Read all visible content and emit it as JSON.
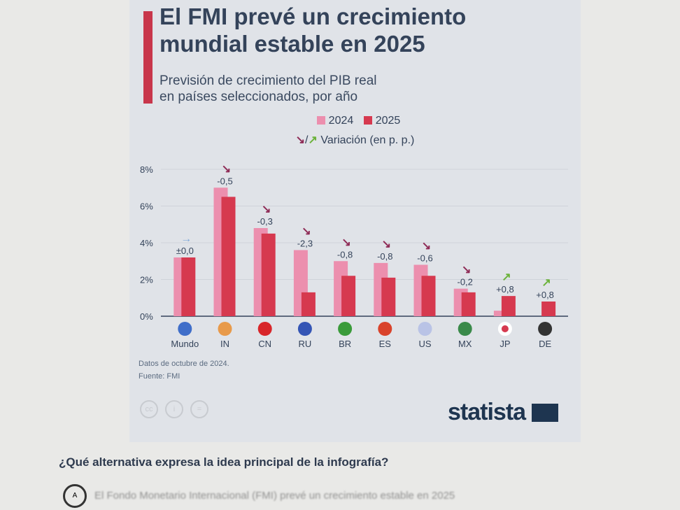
{
  "infographic": {
    "title": "El FMI prevé un crecimiento mundial estable en 2025",
    "subtitle_line1": "Previsión de crecimiento del PIB real",
    "subtitle_line2": "en países seleccionados, por año",
    "legend_variation": "Variación (en p. p.)",
    "note": "Datos de octubre de 2024.",
    "source": "Fuente: FMI",
    "brand": "statista",
    "colors": {
      "y2024": "#ec8fae",
      "y2025": "#d6394f",
      "accent_bar": "#c8364b",
      "down_arrow": "#8e2a55",
      "up_arrow": "#6bb23a",
      "flat_arrow": "#7fa8d8"
    }
  },
  "chart_data": {
    "type": "bar",
    "title": "El FMI prevé un crecimiento mundial estable en 2025",
    "categories": [
      "Mundo",
      "IN",
      "CN",
      "RU",
      "BR",
      "ES",
      "US",
      "MX",
      "JP",
      "DE"
    ],
    "series": [
      {
        "name": "2024",
        "values": [
          3.2,
          7.0,
          4.8,
          3.6,
          3.0,
          2.9,
          2.8,
          1.5,
          0.3,
          0.0
        ]
      },
      {
        "name": "2025",
        "values": [
          3.2,
          6.5,
          4.5,
          1.3,
          2.2,
          2.1,
          2.2,
          1.3,
          1.1,
          0.8
        ]
      }
    ],
    "variation_labels": [
      "±0,0",
      "-0,5",
      "-0,3",
      "-2,3",
      "-0,8",
      "-0,8",
      "-0,6",
      "-0,2",
      "+0,8",
      "+0,8"
    ],
    "variation_direction": [
      "flat",
      "down",
      "down",
      "down",
      "down",
      "down",
      "down",
      "down",
      "up",
      "up"
    ],
    "yticks": [
      "0%",
      "2%",
      "4%",
      "6%",
      "8%"
    ],
    "ylim": [
      0,
      8
    ],
    "grid": true,
    "legend": "top"
  },
  "question": {
    "text": "¿Qué alternativa expresa la idea principal de la infografía?",
    "option_a_letter": "A",
    "option_a_text": "El Fondo Monetario Internacional (FMI) prevé un crecimiento estable en 2025"
  }
}
